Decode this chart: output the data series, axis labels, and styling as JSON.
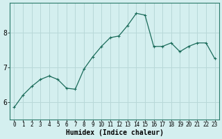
{
  "title": "",
  "xlabel": "Humidex (Indice chaleur)",
  "ylabel": "",
  "background_color": "#d4efef",
  "grid_color": "#b8d8d8",
  "line_color": "#1a6b5a",
  "marker_color": "#1a6b5a",
  "x_values": [
    0,
    1,
    2,
    3,
    4,
    5,
    6,
    7,
    8,
    9,
    10,
    11,
    12,
    13,
    14,
    15,
    16,
    17,
    18,
    19,
    20,
    21,
    22,
    23
  ],
  "y_values": [
    5.85,
    6.2,
    6.45,
    6.65,
    6.75,
    6.65,
    6.4,
    6.37,
    6.95,
    7.3,
    7.6,
    7.85,
    7.9,
    8.2,
    8.55,
    8.5,
    7.6,
    7.6,
    7.7,
    7.45,
    7.6,
    7.7,
    7.7,
    7.25
  ],
  "yticks": [
    6,
    7,
    8
  ],
  "xtick_labels": [
    "0",
    "1",
    "2",
    "3",
    "4",
    "5",
    "6",
    "7",
    "8",
    "9",
    "10",
    "11",
    "12",
    "13",
    "14",
    "15",
    "16",
    "17",
    "18",
    "19",
    "20",
    "21",
    "22",
    "23"
  ],
  "ylim": [
    5.5,
    8.85
  ],
  "xlim": [
    -0.5,
    23.5
  ]
}
